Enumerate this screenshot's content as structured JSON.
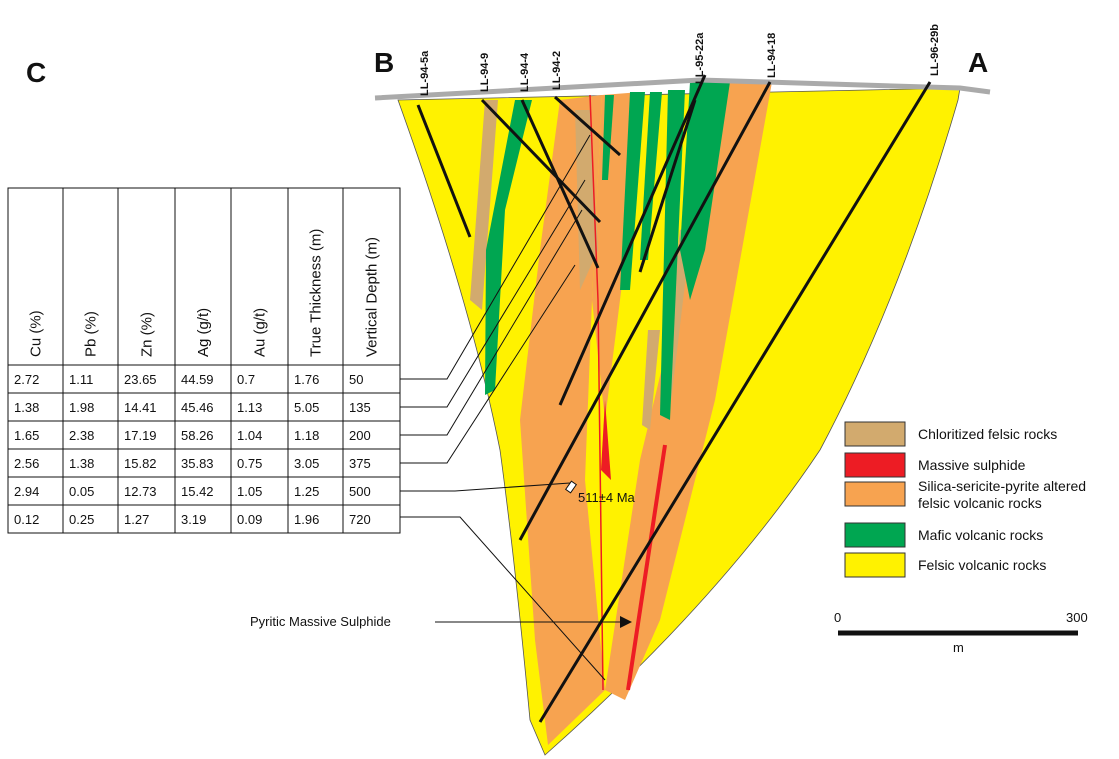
{
  "labels": {
    "section_left": "B",
    "section_right": "A",
    "panel": "C"
  },
  "drill_holes": [
    "LL-94-5a",
    "LL-94-9",
    "LL-94-4",
    "LL-94-2",
    "LL-95-22a",
    "LL-94-18",
    "LL-96-29b"
  ],
  "table": {
    "headers": [
      "Cu (%)",
      "Pb (%)",
      "Zn (%)",
      "Ag (g/t)",
      "Au (g/t)",
      "True Thickness (m)",
      "Vertical Depth (m)"
    ],
    "rows": [
      [
        "2.72",
        "1.11",
        "23.65",
        "44.59",
        "0.7",
        "1.76",
        "50"
      ],
      [
        "1.38",
        "1.98",
        "14.41",
        "45.46",
        "1.13",
        "5.05",
        "135"
      ],
      [
        "1.65",
        "2.38",
        "17.19",
        "58.26",
        "1.04",
        "1.18",
        "200"
      ],
      [
        "2.56",
        "1.38",
        "15.82",
        "35.83",
        "0.75",
        "3.05",
        "375"
      ],
      [
        "2.94",
        "0.05",
        "12.73",
        "15.42",
        "1.05",
        "1.25",
        "500"
      ],
      [
        "0.12",
        "0.25",
        "1.27",
        "3.19",
        "0.09",
        "1.96",
        "720"
      ]
    ]
  },
  "annotations": {
    "age": "511±4 Ma",
    "pyritic": "Pyritic Massive Sulphide"
  },
  "legend": [
    {
      "lines": [
        "Chloritized felsic rocks"
      ],
      "color": "#d2aa6e"
    },
    {
      "lines": [
        "Massive sulphide"
      ],
      "color": "#ed1c24"
    },
    {
      "lines": [
        "Silica-sericite-pyrite altered",
        "felsic volcanic rocks"
      ],
      "color": "#f7a350"
    },
    {
      "lines": [
        "Mafic volcanic rocks"
      ],
      "color": "#00a651"
    },
    {
      "lines": [
        "Felsic volcanic rocks"
      ],
      "color": "#fff200"
    }
  ],
  "scale": {
    "start": "0",
    "end": "300",
    "unit": "m"
  }
}
